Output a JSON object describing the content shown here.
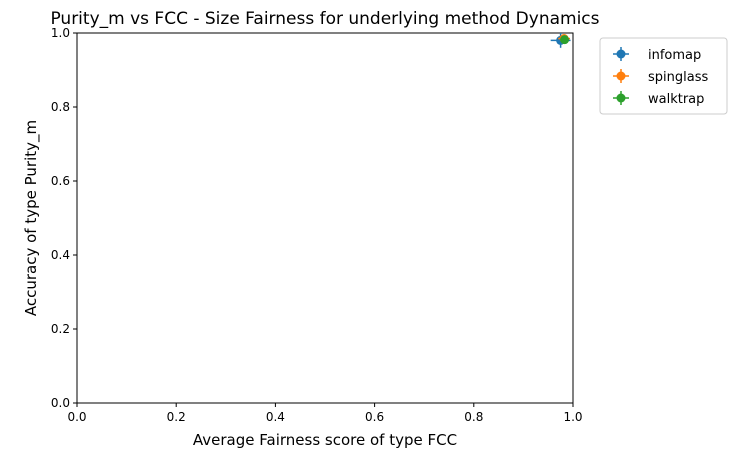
{
  "chart_data": {
    "type": "scatter",
    "title": "Purity_m vs FCC - Size Fairness for underlying method Dynamics",
    "xlabel": "Average Fairness score of type FCC",
    "ylabel": "Accuracy of type Purity_m",
    "xlim": [
      0.0,
      1.0
    ],
    "ylim": [
      0.0,
      1.0
    ],
    "xticks": [
      "0.0",
      "0.2",
      "0.4",
      "0.6",
      "0.8",
      "1.0"
    ],
    "yticks": [
      "0.0",
      "0.2",
      "0.4",
      "0.6",
      "0.8",
      "1.0"
    ],
    "grid": false,
    "legend_placement": "outside-top-right",
    "series": [
      {
        "name": "infomap",
        "color": "#1f77b4",
        "x": 0.975,
        "y": 0.98,
        "xerr": 0.02,
        "yerr": 0.02
      },
      {
        "name": "spinglass",
        "color": "#ff7f0e",
        "x": 0.982,
        "y": 0.985,
        "xerr": 0.012,
        "yerr": 0.01
      },
      {
        "name": "walktrap",
        "color": "#2ca02c",
        "x": 0.983,
        "y": 0.982,
        "xerr": 0.008,
        "yerr": 0.008
      }
    ]
  }
}
